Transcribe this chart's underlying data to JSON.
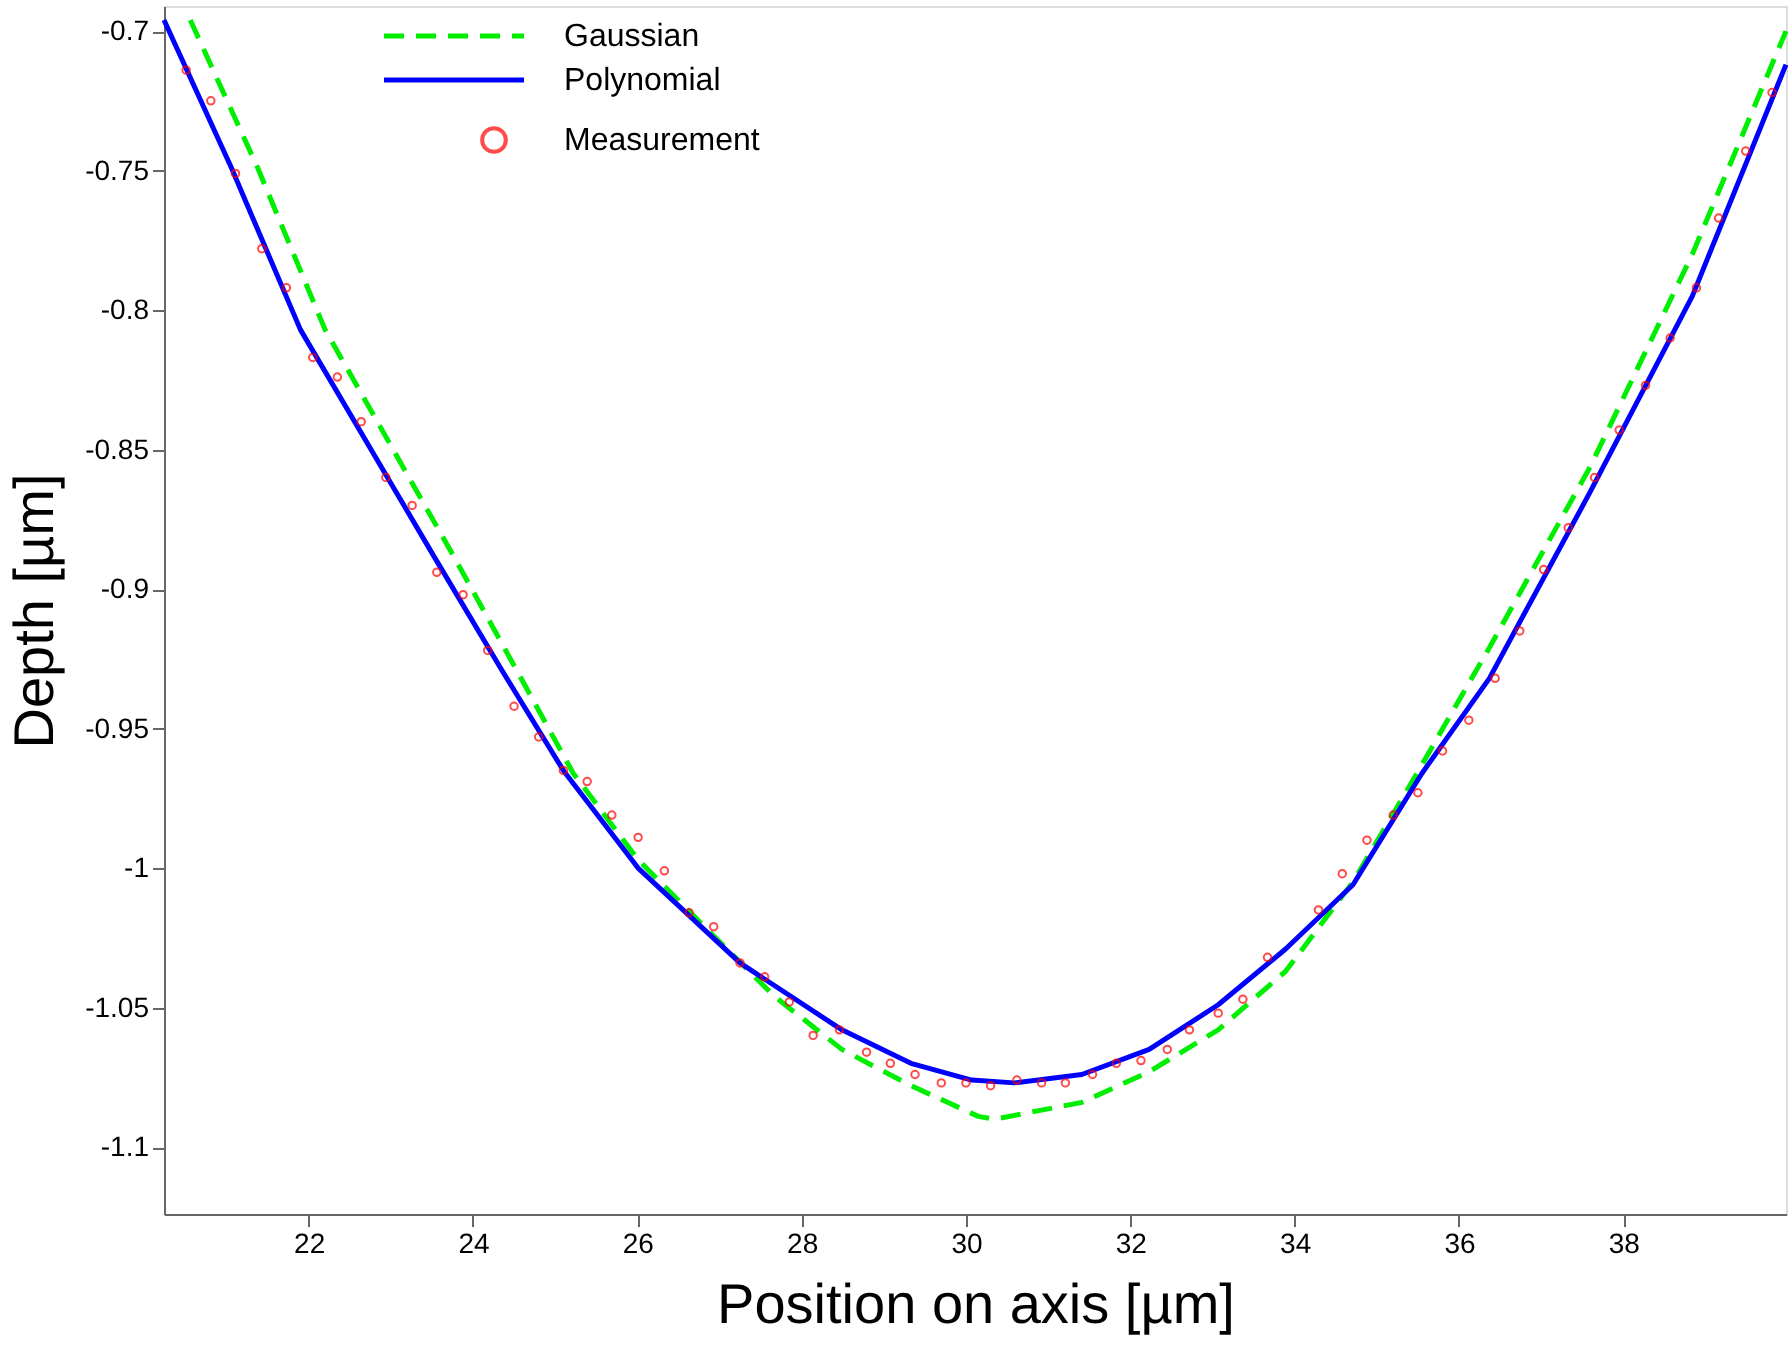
{
  "chart_data": {
    "type": "line",
    "xlabel": "Position on axis [µm]",
    "ylabel": "Depth [µm]",
    "xlim": [
      20.24,
      39.98
    ],
    "ylim": [
      -1.124,
      -0.691
    ],
    "xticks": [
      22,
      24,
      26,
      28,
      30,
      32,
      34,
      36,
      38
    ],
    "yticks": [
      -1.1,
      -1.05,
      -1,
      -0.95,
      -0.9,
      -0.85,
      -0.8,
      -0.75,
      -0.7
    ],
    "grid": false,
    "legend": "top left",
    "series": [
      {
        "name": "Gaussian",
        "line_style": "dashed",
        "color": "#00ee00",
        "x": [
          20.56,
          21.38,
          22.2,
          22.99,
          23.78,
          24.53,
          25.22,
          26.01,
          26.85,
          27.67,
          28.49,
          29.33,
          30.15,
          30.35,
          31.41,
          32.23,
          33.07,
          33.89,
          34.71,
          35.45,
          36.37,
          37.6,
          38.84,
          39.98
        ],
        "values": [
          -0.696,
          -0.749,
          -0.807,
          -0.848,
          -0.889,
          -0.929,
          -0.966,
          -0.997,
          -1.022,
          -1.046,
          -1.065,
          -1.078,
          -1.089,
          -1.09,
          -1.084,
          -1.073,
          -1.058,
          -1.037,
          -1.005,
          -0.968,
          -0.921,
          -0.856,
          -0.78,
          -0.7
        ]
      },
      {
        "name": "Polynomial",
        "line_style": "solid",
        "color": "#0000ff",
        "x": [
          20.24,
          21.06,
          21.9,
          22.72,
          23.54,
          24.35,
          25.1,
          26.01,
          27.25,
          28.49,
          29.33,
          30.07,
          30.59,
          31.41,
          32.23,
          33.07,
          33.89,
          34.71,
          35.55,
          36.37,
          37.6,
          38.84,
          39.98
        ],
        "values": [
          -0.696,
          -0.749,
          -0.807,
          -0.848,
          -0.889,
          -0.929,
          -0.965,
          -1.0,
          -1.034,
          -1.058,
          -1.07,
          -1.076,
          -1.077,
          -1.074,
          -1.065,
          -1.049,
          -1.029,
          -1.006,
          -0.966,
          -0.932,
          -0.865,
          -0.795,
          -0.712
        ]
      },
      {
        "name": "Measurement",
        "type": "scatter",
        "marker": "circle",
        "color": "#ff0000",
        "x": [
          20.51,
          20.81,
          21.11,
          21.43,
          21.73,
          22.05,
          22.35,
          22.64,
          22.94,
          23.26,
          23.56,
          23.88,
          24.18,
          24.5,
          24.8,
          25.1,
          25.39,
          25.69,
          26.01,
          26.33,
          26.63,
          26.93,
          27.25,
          27.55,
          27.85,
          28.14,
          28.46,
          28.79,
          29.08,
          29.38,
          29.7,
          30.0,
          30.3,
          30.62,
          30.92,
          31.21,
          31.54,
          31.83,
          32.13,
          32.45,
          32.72,
          33.07,
          33.37,
          33.67,
          34.29,
          34.58,
          34.88,
          35.2,
          35.5,
          35.8,
          36.12,
          36.44,
          36.74,
          37.03,
          37.33,
          37.65,
          37.95,
          38.27,
          38.57,
          38.89,
          39.16,
          39.49,
          39.81
        ],
        "values": [
          -0.714,
          -0.725,
          -0.751,
          -0.778,
          -0.792,
          -0.817,
          -0.824,
          -0.84,
          -0.86,
          -0.87,
          -0.894,
          -0.902,
          -0.922,
          -0.942,
          -0.953,
          -0.965,
          -0.969,
          -0.981,
          -0.989,
          -1.001,
          -1.016,
          -1.021,
          -1.034,
          -1.039,
          -1.048,
          -1.06,
          -1.058,
          -1.066,
          -1.07,
          -1.074,
          -1.077,
          -1.077,
          -1.078,
          -1.076,
          -1.077,
          -1.077,
          -1.074,
          -1.07,
          -1.069,
          -1.065,
          -1.058,
          -1.052,
          -1.047,
          -1.032,
          -1.015,
          -1.002,
          -0.99,
          -0.981,
          -0.973,
          -0.958,
          -0.947,
          -0.932,
          -0.915,
          -0.893,
          -0.878,
          -0.86,
          -0.843,
          -0.827,
          -0.81,
          -0.792,
          -0.767,
          -0.743,
          -0.722
        ]
      }
    ]
  }
}
